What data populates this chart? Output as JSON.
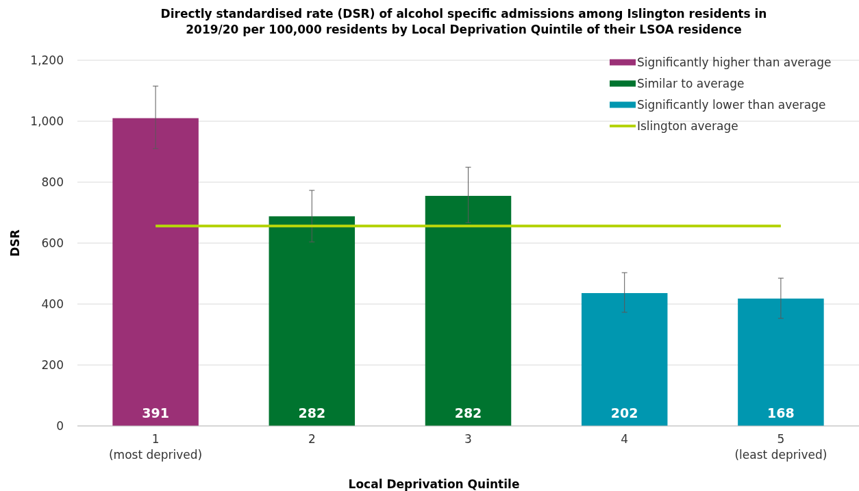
{
  "chart_data": {
    "type": "bar",
    "title": "Directly standardised rate (DSR) of alcohol specific admissions among Islington residents in\n2019/20 per 100,000 residents by Local Deprivation Quintile of their LSOA residence",
    "xlabel": "Local Deprivation Quintile",
    "ylabel": "DSR",
    "categories": [
      "1\n(most deprived)",
      "2",
      "3",
      "4",
      "5\n(least deprived)"
    ],
    "annotations": [
      "391",
      "282",
      "282",
      "202",
      "168"
    ],
    "series": [
      {
        "name": "Significantly higher than average",
        "color": "#9b3076",
        "values": [
          1010,
          null,
          null,
          null,
          null
        ],
        "errors": [
          [
            910,
            1115
          ],
          null,
          null,
          null,
          null
        ]
      },
      {
        "name": "Similar to average",
        "color": "#00742f",
        "values": [
          null,
          688,
          755,
          null,
          null
        ],
        "errors": [
          null,
          [
            604,
            773
          ],
          [
            667,
            849
          ],
          null,
          null
        ]
      },
      {
        "name": "Significantly lower than average",
        "color": "#0097b0",
        "values": [
          null,
          null,
          null,
          436,
          418
        ],
        "errors": [
          null,
          null,
          null,
          [
            373,
            503
          ],
          [
            353,
            485
          ]
        ]
      }
    ],
    "ref_lines": [
      {
        "axis": "y",
        "value": 656,
        "label": "Islington average",
        "color": "#b5d30c"
      }
    ],
    "ylim": [
      0,
      1200
    ],
    "yticks": [
      0,
      200,
      400,
      600,
      800,
      {
        "value": 1000,
        "label": "1,000"
      },
      {
        "value": 1200,
        "label": "1,200"
      }
    ],
    "grid": "y",
    "legend": "top right"
  }
}
